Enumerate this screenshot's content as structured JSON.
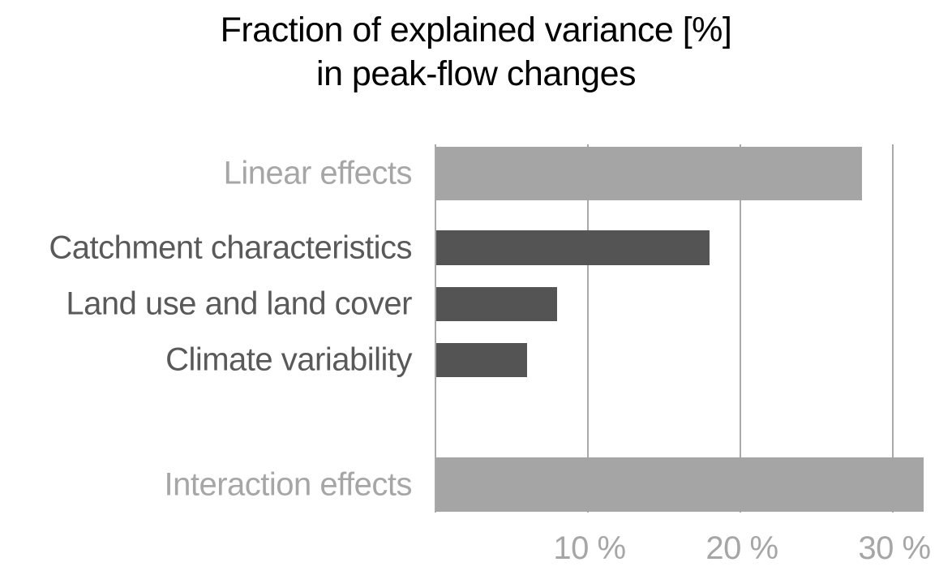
{
  "chart_data": {
    "type": "bar",
    "orientation": "horizontal",
    "title": "Fraction of explained variance [%] in peak-flow changes",
    "title_line1": "Fraction of explained variance [%]",
    "title_line2": "in peak-flow changes",
    "xlabel": "",
    "ylabel": "",
    "xlim": [
      0,
      33.9
    ],
    "grid": "vertical-gridlines-at-ticks",
    "legend": "none",
    "x_ticks": [
      {
        "value": 10,
        "label": "10 %"
      },
      {
        "value": 20,
        "label": "20 %"
      },
      {
        "value": 30,
        "label": "30 %"
      }
    ],
    "bars": [
      {
        "category": "Linear effects",
        "value": 28,
        "style": "light",
        "thickness": "thick"
      },
      {
        "category": "Catchment characteristics",
        "value": 18,
        "style": "dark",
        "thickness": "thin"
      },
      {
        "category": "Land use and land cover",
        "value": 8,
        "style": "dark",
        "thickness": "thin"
      },
      {
        "category": "Climate variability",
        "value": 6,
        "style": "dark",
        "thickness": "thin"
      },
      {
        "category": "Interaction effects",
        "value": 32,
        "style": "light",
        "thickness": "thick"
      }
    ]
  },
  "colors": {
    "bar_light": "#a5a5a5",
    "bar_dark": "#545454",
    "label_light": "#a6a6a6",
    "label_dark": "#595959",
    "tick_label": "#a6a6a6",
    "gridline": "#a9a9a9",
    "axis_line": "#a9a9a9",
    "title": "#000000",
    "background": "#ffffff"
  }
}
